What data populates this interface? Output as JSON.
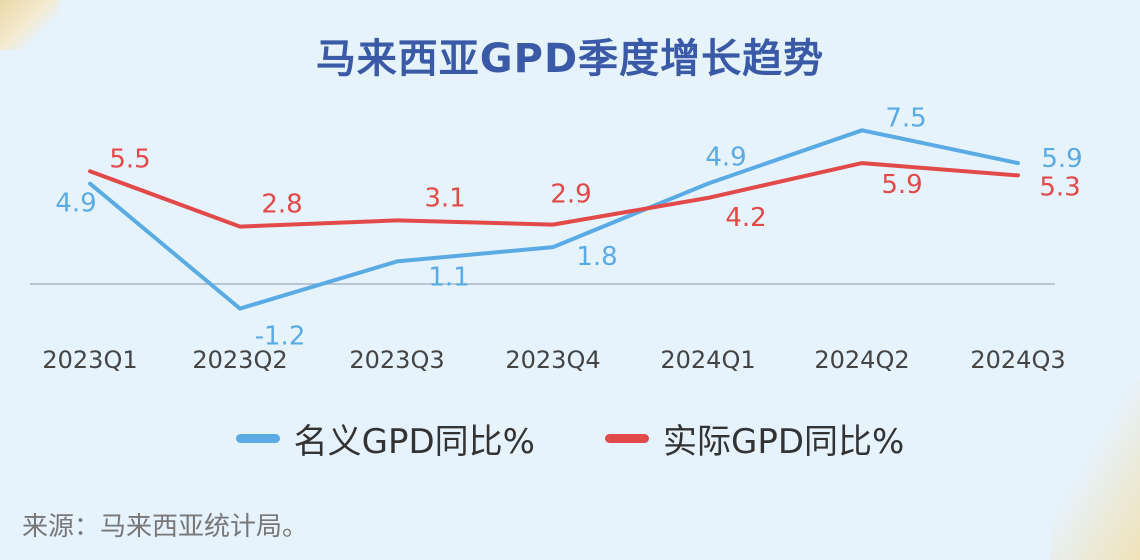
{
  "chart_data": {
    "type": "line",
    "title": "马来西亚GPD季度增长趋势",
    "categories": [
      "2023Q1",
      "2023Q2",
      "2023Q3",
      "2023Q4",
      "2024Q1",
      "2024Q2",
      "2024Q3"
    ],
    "series": [
      {
        "name": "名义GPD同比%",
        "color": "#5aaae6",
        "values": [
          4.9,
          -1.2,
          1.1,
          1.8,
          4.9,
          7.5,
          5.9
        ]
      },
      {
        "name": "实际GPD同比%",
        "color": "#e24a4a",
        "values": [
          5.5,
          2.8,
          3.1,
          2.9,
          4.2,
          5.9,
          5.3
        ]
      }
    ],
    "legend_position": "bottom",
    "grid": false,
    "baseline": 0
  },
  "source": "来源：马来西亚统计局。"
}
